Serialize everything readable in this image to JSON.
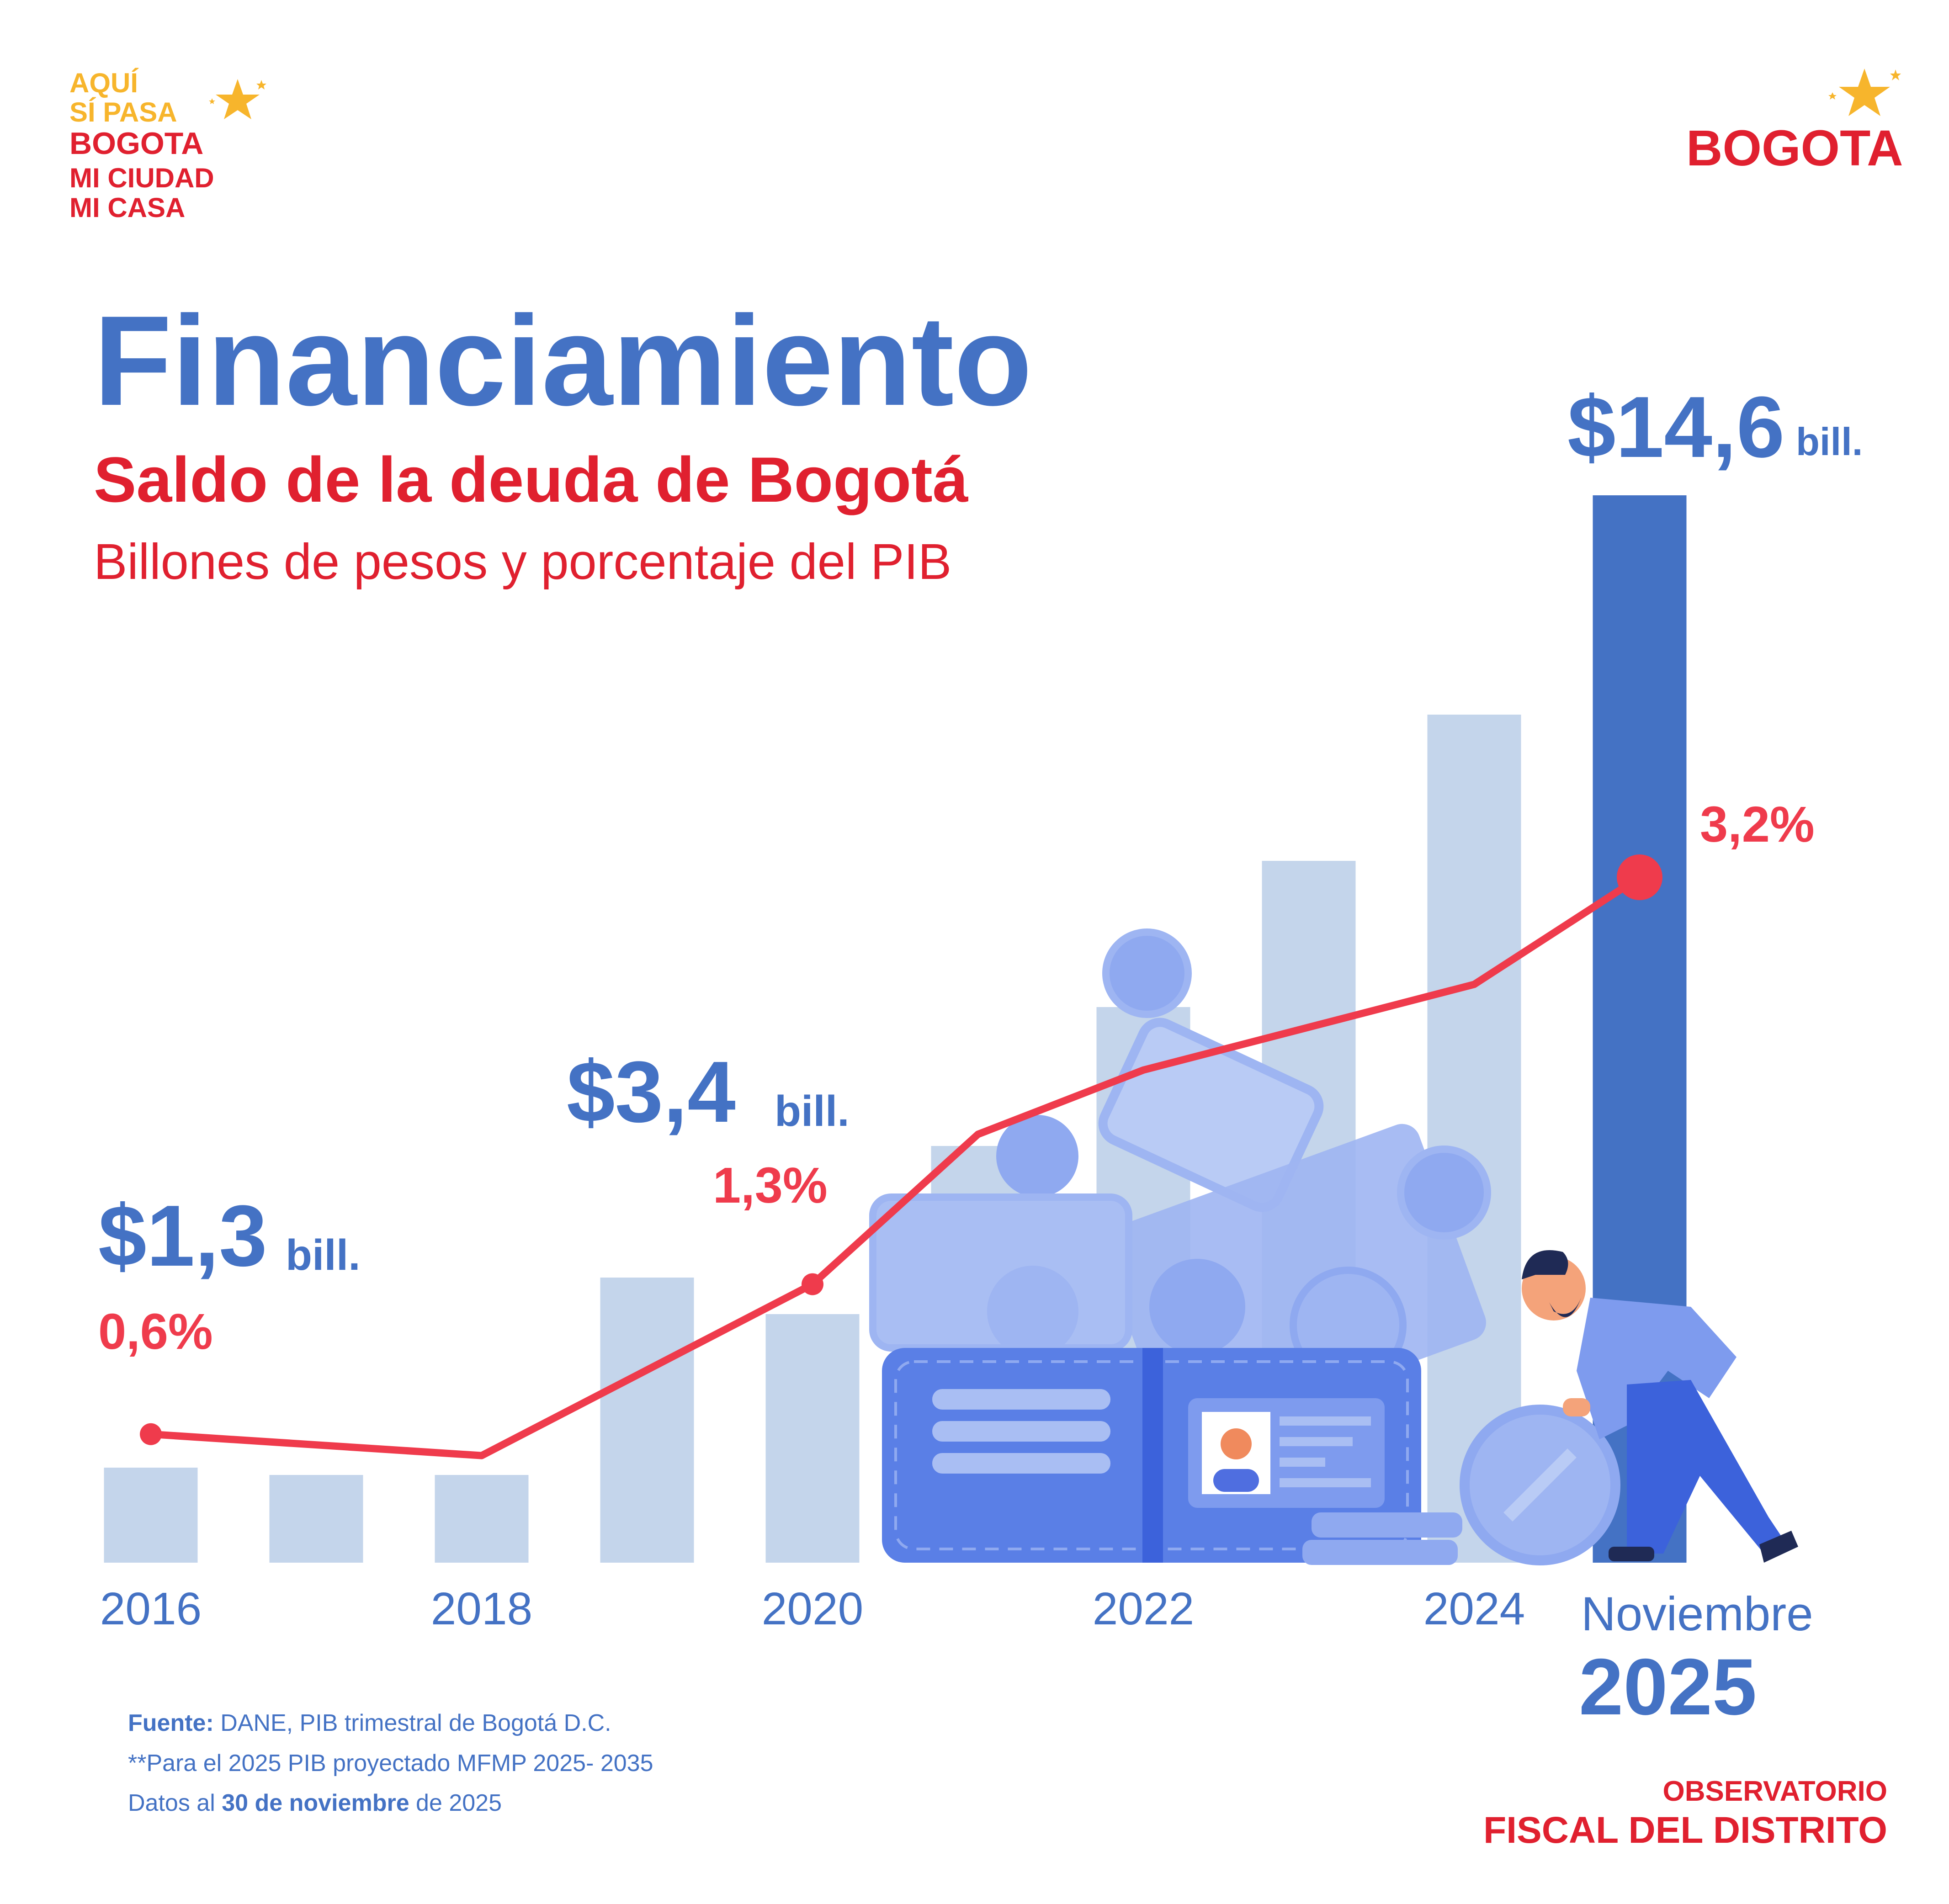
{
  "branding": {
    "left_logo_lines": [
      "AQUÍ",
      "SÍ PASA",
      "BOGOTA",
      "MI CIUDAD",
      "MI CASA"
    ],
    "right_logo": "BOGOTA"
  },
  "heading": {
    "title": "Financiamiento",
    "subtitle": "Saldo de la deuda de Bogotá",
    "units": "Billones de pesos y porcentaje del PIB"
  },
  "callouts": {
    "v2016": {
      "big": "$1,3",
      "unit": "bill.",
      "pct": "0,6%"
    },
    "v2020": {
      "big": "$3,4",
      "unit": "bill.",
      "pct": "1,3%"
    },
    "v2025": {
      "big": "$14,6",
      "unit": "bill.",
      "pct": "3,2%"
    }
  },
  "last_label": {
    "month": "Noviembre",
    "year": "2025"
  },
  "footer": {
    "source_bold": "Fuente:",
    "source_text": " DANE,  PIB trimestral de Bogotá D.C.",
    "note": "**Para el 2025 PIB  proyectado MFMP 2025- 2035",
    "date_pre": "Datos al ",
    "date_bold": "30 de noviembre",
    "date_post": " de 2025"
  },
  "observatorio": {
    "line1": "OBSERVATORIO",
    "line2": "FISCAL DEL DISTRITO"
  },
  "colors": {
    "blue": "#4472C4",
    "light_bar": "#C4D5EB",
    "red_line": "#EF3B4C",
    "red_text": "#E0202F",
    "yellow": "#F7B52C",
    "illus_blue": "#5A7FE6",
    "illus_light": "#9EB5F2"
  },
  "chart_data": {
    "type": "bar",
    "categories": [
      "2016",
      "2017",
      "2018",
      "2019",
      "2020",
      "2021",
      "2022",
      "2023",
      "2024",
      "Noviembre 2025"
    ],
    "x_tick_labels": [
      "2016",
      "2018",
      "2020",
      "2022",
      "2024"
    ],
    "series": [
      {
        "values": [
          1.3,
          1.2,
          1.2,
          3.9,
          3.4,
          5.7,
          7.6,
          9.6,
          11.6,
          14.6
        ]
      },
      {
        "values": [
          0.6,
          0.55,
          0.5,
          0.9,
          1.3,
          2.0,
          2.3,
          2.5,
          2.7,
          3.2
        ]
      }
    ],
    "ylim_bars": [
      0,
      15
    ],
    "ylim_line": [
      0,
      4
    ],
    "highlight_category": "Noviembre 2025",
    "grid": false
  }
}
